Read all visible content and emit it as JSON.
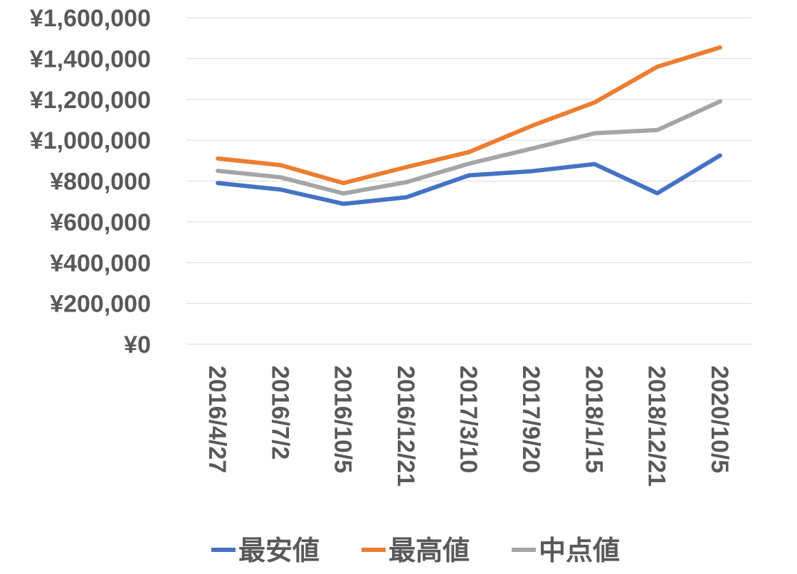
{
  "chart_data": {
    "type": "line",
    "title": "",
    "xlabel": "",
    "ylabel": "",
    "categories": [
      "2016/4/27",
      "2016/7/2",
      "2016/10/5",
      "2016/12/21",
      "2017/3/10",
      "2017/9/20",
      "2018/1/15",
      "2018/12/21",
      "2020/10/5"
    ],
    "ylim": [
      0,
      1600000
    ],
    "y_ticks": [
      {
        "value": 0,
        "label": "¥0"
      },
      {
        "value": 200000,
        "label": "¥200,000"
      },
      {
        "value": 400000,
        "label": "¥400,000"
      },
      {
        "value": 600000,
        "label": "¥600,000"
      },
      {
        "value": 800000,
        "label": "¥800,000"
      },
      {
        "value": 1000000,
        "label": "¥1,000,000"
      },
      {
        "value": 1200000,
        "label": "¥1,200,000"
      },
      {
        "value": 1400000,
        "label": "¥1,400,000"
      },
      {
        "value": 1600000,
        "label": "¥1,600,000"
      }
    ],
    "grid": true,
    "legend_position": "bottom",
    "series": [
      {
        "name": "最安値",
        "color": "#4472C4",
        "values": [
          790000,
          758000,
          688000,
          720000,
          828000,
          848000,
          883000,
          740000,
          925000
        ]
      },
      {
        "name": "最高値",
        "color": "#ED7D31",
        "values": [
          910000,
          878000,
          790000,
          868000,
          942000,
          1070000,
          1185000,
          1360000,
          1455000
        ]
      },
      {
        "name": "中点値",
        "color": "#A5A5A5",
        "values": [
          850000,
          818000,
          739000,
          794000,
          885000,
          959000,
          1034000,
          1050000,
          1190000
        ]
      }
    ]
  }
}
